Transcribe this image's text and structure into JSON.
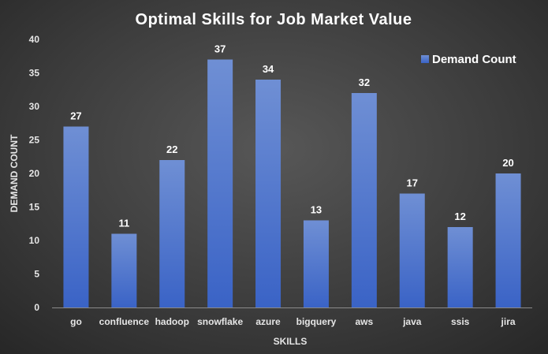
{
  "chart_data": {
    "type": "bar",
    "title": "Optimal Skills for Job Market Value",
    "xlabel": "SKILLS",
    "ylabel": "DEMAND COUNT",
    "categories": [
      "go",
      "confluence",
      "hadoop",
      "snowflake",
      "azure",
      "bigquery",
      "aws",
      "java",
      "ssis",
      "jira"
    ],
    "series": [
      {
        "name": "Demand Count",
        "values": [
          27,
          11,
          22,
          37,
          34,
          13,
          32,
          17,
          12,
          20
        ]
      }
    ],
    "ylim": [
      0,
      40
    ],
    "yticks": [
      0,
      5,
      10,
      15,
      20,
      25,
      30,
      35,
      40
    ],
    "grid": false,
    "legend_position": "top-right",
    "data_labels": true,
    "colors": {
      "bar_top": "#6f8fd4",
      "bar_bottom": "#3a63c6",
      "text": "#ffffff",
      "axis_text": "#e6e6e6",
      "axis_line": "#8a8a8a"
    }
  }
}
